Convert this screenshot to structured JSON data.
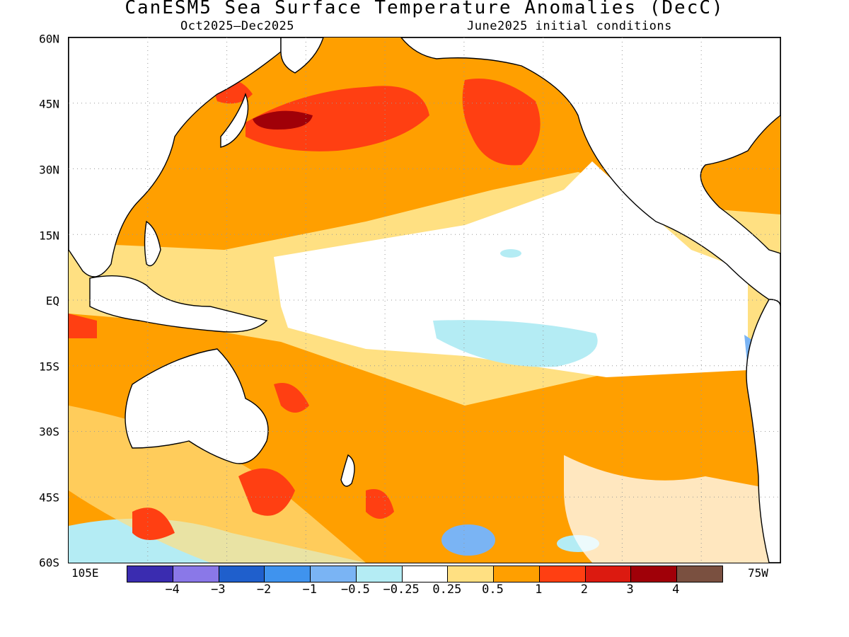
{
  "title": "CanESM5 Sea Surface Temperature Anomalies (DecC)",
  "subtitle_left": "Oct2025–Dec2025",
  "subtitle_right": "June2025 initial conditions",
  "lat_labels": [
    "60N",
    "45N",
    "30N",
    "15N",
    "EQ",
    "15S",
    "30S",
    "45S",
    "60S"
  ],
  "lon_labels": {
    "left": "105E",
    "right": "75W"
  },
  "colorbar": {
    "colors": [
      "#3a2cb0",
      "#8a78e8",
      "#1f5fcc",
      "#3f93ee",
      "#7ab4f4",
      "#b4ecf4",
      "#ffffff",
      "#ffe082",
      "#ff9f00",
      "#ff3f12",
      "#dc1a10",
      "#a00008",
      "#7a5040"
    ],
    "labels": [
      "−4",
      "−3",
      "−2",
      "−1",
      "−0.5",
      "−0.25",
      "0.25",
      "0.5",
      "1",
      "2",
      "3",
      "4"
    ]
  },
  "ocean_color": "#ff9f00",
  "land_color": "#ffffff"
}
